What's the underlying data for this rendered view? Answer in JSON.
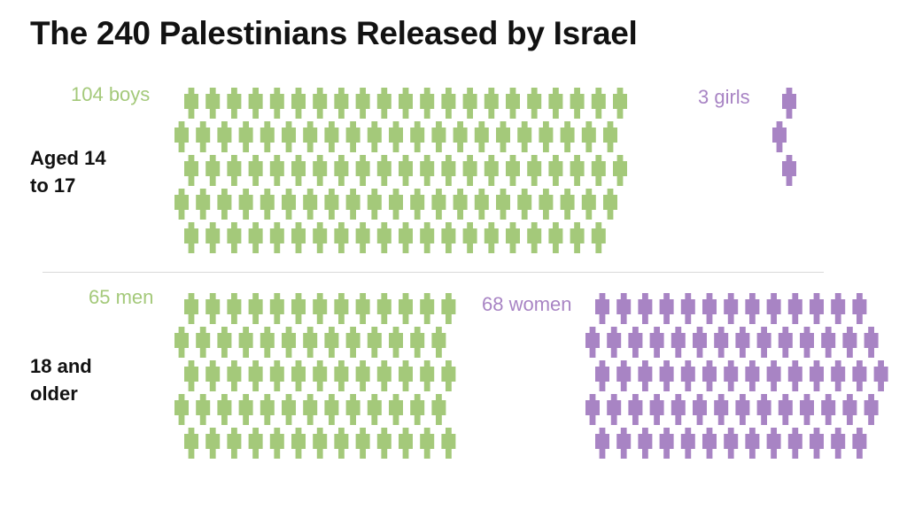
{
  "title": "The 240 Palestinians Released by Israel",
  "colors": {
    "male": "#a4c97a",
    "female": "#a884c4",
    "text": "#121212"
  },
  "rows": [
    {
      "label_lines": [
        "Aged 14",
        "to 17"
      ]
    },
    {
      "label_lines": [
        "18 and",
        "older"
      ]
    }
  ],
  "chart_data": {
    "type": "pictogram",
    "title": "The 240 Palestinians Released by Israel",
    "total": 240,
    "categories": [
      "Aged 14 to 17",
      "18 and older"
    ],
    "groups": [
      {
        "label": "104 boys",
        "count": 104,
        "row": "Aged 14 to 17",
        "color": "#a4c97a"
      },
      {
        "label": "3 girls",
        "count": 3,
        "row": "Aged 14 to 17",
        "color": "#a884c4"
      },
      {
        "label": "65 men",
        "count": 65,
        "row": "18 and older",
        "color": "#a4c97a"
      },
      {
        "label": "68 women",
        "count": 68,
        "row": "18 and older",
        "color": "#a884c4"
      }
    ]
  }
}
